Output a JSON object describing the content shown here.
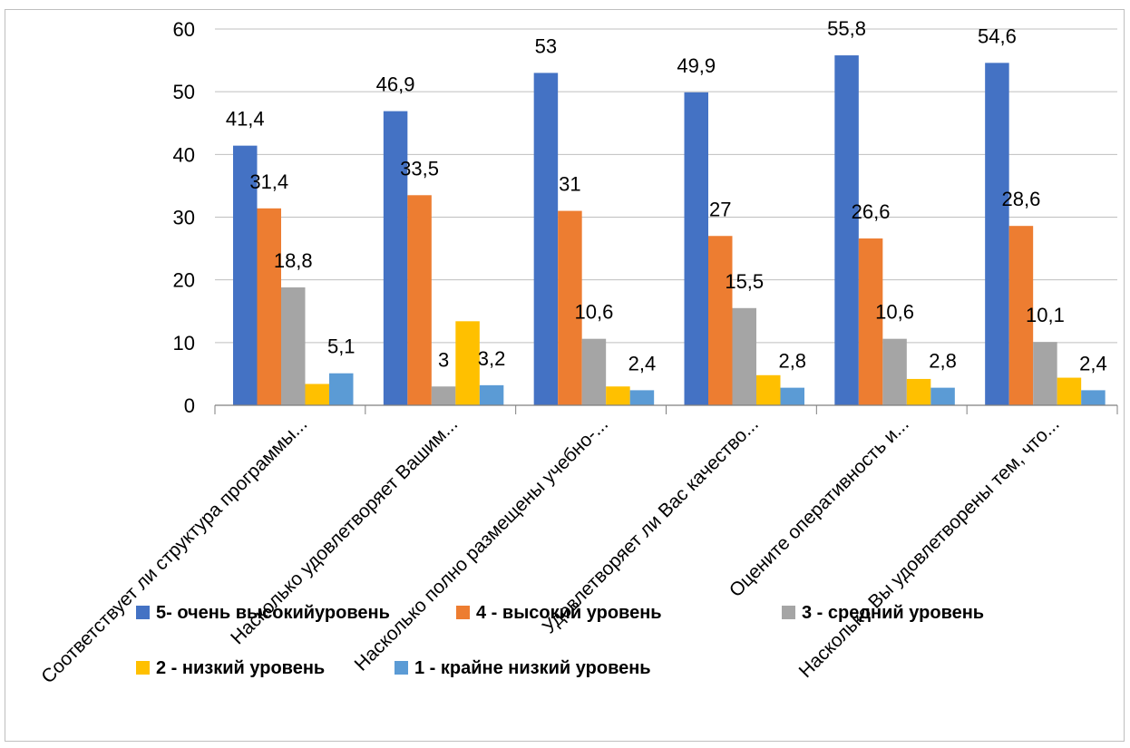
{
  "chart_data": {
    "type": "bar",
    "categories": [
      "Соответствует ли структура программы...",
      "Насколько удовлетворяет Вашим...",
      "Насколько полно размещены учебно-...",
      "Удовлетворяет ли Вас качество...",
      "Оцените оперативность и...",
      "Насколько Вы удовлетворены тем, что..."
    ],
    "series": [
      {
        "name": "5- очень высокийуровень",
        "color": "#4472C4",
        "values": [
          41.4,
          46.9,
          53,
          49.9,
          55.8,
          54.6
        ],
        "labels": [
          "41,4",
          "46,9",
          "53",
          "49,9",
          "55,8",
          "54,6"
        ]
      },
      {
        "name": "4 - высокий уровень",
        "color": "#ED7D31",
        "values": [
          31.4,
          33.5,
          31,
          27,
          26.6,
          28.6
        ],
        "labels": [
          "31,4",
          "33,5",
          "31",
          "27",
          "26,6",
          "28,6"
        ]
      },
      {
        "name": "3 - средний уровень",
        "color": "#A5A5A5",
        "values": [
          18.8,
          3,
          10.6,
          15.5,
          10.6,
          10.1
        ],
        "labels": [
          "18,8",
          "3",
          "10,6",
          "15,5",
          "10,6",
          "10,1"
        ]
      },
      {
        "name": "2 - низкий уровень",
        "color": "#FFC000",
        "values": [
          3.4,
          13.4,
          3,
          4.8,
          4.2,
          4.4
        ],
        "labels": [
          null,
          null,
          null,
          null,
          null,
          null
        ]
      },
      {
        "name": "1 - крайне низкий уровень",
        "color": "#5B9BD5",
        "values": [
          5.1,
          3.2,
          2.4,
          2.8,
          2.8,
          2.4
        ],
        "labels": [
          "5,1",
          "3,2",
          "2,4",
          "2,8",
          "2,8",
          "2,4"
        ]
      }
    ],
    "yticks": [
      "0",
      "10",
      "20",
      "30",
      "40",
      "50",
      "60"
    ],
    "ylim": [
      0,
      60
    ],
    "grid": true,
    "legend": "bottom"
  }
}
